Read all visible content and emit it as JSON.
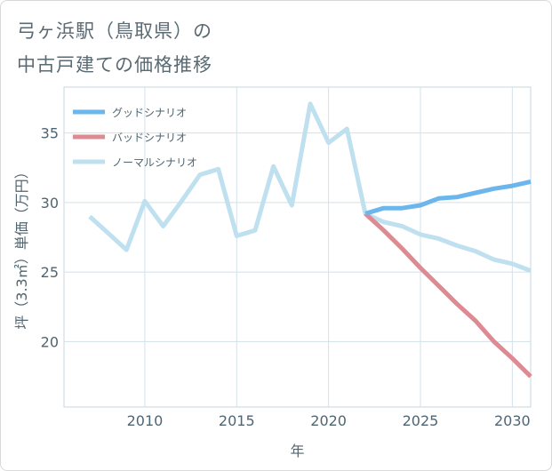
{
  "page": {
    "title_line1": "弓ヶ浜駅（鳥取県）の",
    "title_line2": "中古戸建ての価格推移"
  },
  "chart_data": {
    "type": "line",
    "title": "弓ヶ浜駅（鳥取県）の中古戸建ての価格推移",
    "xlabel": "年",
    "ylabel": "坪（3.3㎡）単価（万円）",
    "xlim": [
      2005.6,
      2031.0
    ],
    "ylim": [
      15.3,
      38.3
    ],
    "xticks": [
      2010,
      2015,
      2020,
      2025,
      2030
    ],
    "yticks": [
      20,
      25,
      30,
      35
    ],
    "grid": true,
    "legend_position": "top-left",
    "series": [
      {
        "name": "グッドシナリオ",
        "color": "#6bb6ec",
        "x": [
          2022,
          2023,
          2024,
          2025,
          2026,
          2027,
          2028,
          2029,
          2030,
          2031
        ],
        "y": [
          29.2,
          29.6,
          29.6,
          29.8,
          30.3,
          30.4,
          30.7,
          31.0,
          31.2,
          31.5
        ]
      },
      {
        "name": "バッドシナリオ",
        "color": "#de8a93",
        "x": [
          2022,
          2023,
          2024,
          2025,
          2026,
          2027,
          2028,
          2029,
          2030,
          2031
        ],
        "y": [
          29.2,
          28.0,
          26.7,
          25.3,
          24.0,
          22.7,
          21.5,
          20.0,
          18.8,
          17.5
        ]
      },
      {
        "name": "ノーマルシナリオ",
        "color": "#bfe0ef",
        "x": [
          2007,
          2008,
          2009,
          2010,
          2011,
          2012,
          2013,
          2014,
          2015,
          2016,
          2017,
          2018,
          2019,
          2020,
          2021,
          2022,
          2023,
          2024,
          2025,
          2026,
          2027,
          2028,
          2029,
          2030,
          2031
        ],
        "y": [
          29.0,
          27.8,
          26.6,
          30.1,
          28.3,
          30.1,
          32.0,
          32.4,
          27.6,
          28.0,
          32.6,
          29.8,
          37.1,
          34.3,
          35.3,
          29.2,
          28.6,
          28.3,
          27.7,
          27.4,
          26.9,
          26.5,
          25.9,
          25.6,
          25.1
        ]
      }
    ]
  }
}
